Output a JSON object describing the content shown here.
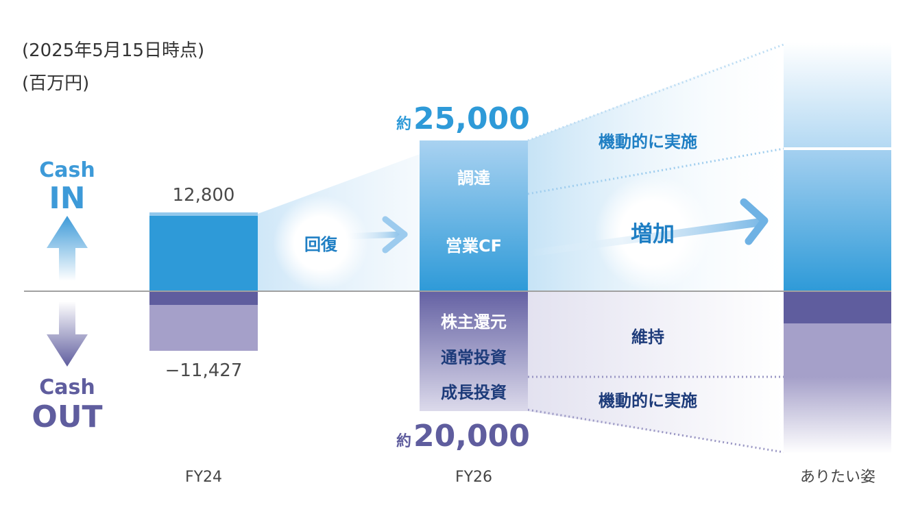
{
  "notes": {
    "as_of": "(2025年5月15日時点)",
    "unit": "(百万円)"
  },
  "cash_in": {
    "line1": "Cash",
    "line2": "IN"
  },
  "cash_out": {
    "line1": "Cash",
    "line2": "OUT"
  },
  "fy24": {
    "label": "FY24",
    "in_value": "12,800",
    "out_value": "−11,427"
  },
  "fy26": {
    "label": "FY26",
    "approx": "約",
    "in_total": "25,000",
    "out_total": "20,000",
    "in_items": [
      "調達",
      "営業CF"
    ],
    "out_items": [
      "株主還元",
      "通常投資",
      "成長投資"
    ]
  },
  "target": {
    "label": "ありたい姿"
  },
  "annotations": {
    "recovery": "回復",
    "increase": "増加",
    "flexible_in": "機動的に実施",
    "maintain": "維持",
    "flexible_out": "機動的に実施"
  },
  "colors": {
    "in_blue": "#2e9ad8",
    "out_dark": "#5f5d9e",
    "out_light": "#a5a0c9",
    "navy_text": "#1d3b7a"
  }
}
